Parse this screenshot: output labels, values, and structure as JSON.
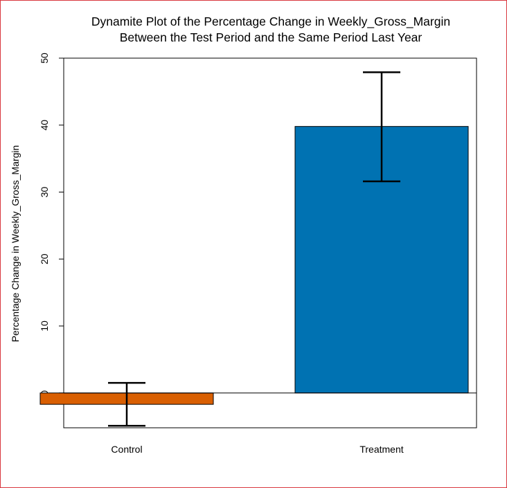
{
  "chart_data": {
    "type": "bar",
    "title": [
      "Dynamite Plot of the Percentage Change in Weekly_Gross_Margin",
      "Between the Test Period and the Same Period Last Year"
    ],
    "xlabel": "",
    "ylabel": "Percentage Change in Weekly_Gross_Margin",
    "categories": [
      "Control",
      "Treatment"
    ],
    "values": [
      -1.7,
      39.8
    ],
    "error_low": [
      -4.9,
      31.6
    ],
    "error_high": [
      1.5,
      47.9
    ],
    "colors": [
      "#d95f02",
      "#0072b2"
    ],
    "ylim": [
      -5.2,
      50
    ],
    "yticks": [
      0,
      10,
      20,
      30,
      40,
      50
    ],
    "grid": false,
    "legend": "none"
  }
}
